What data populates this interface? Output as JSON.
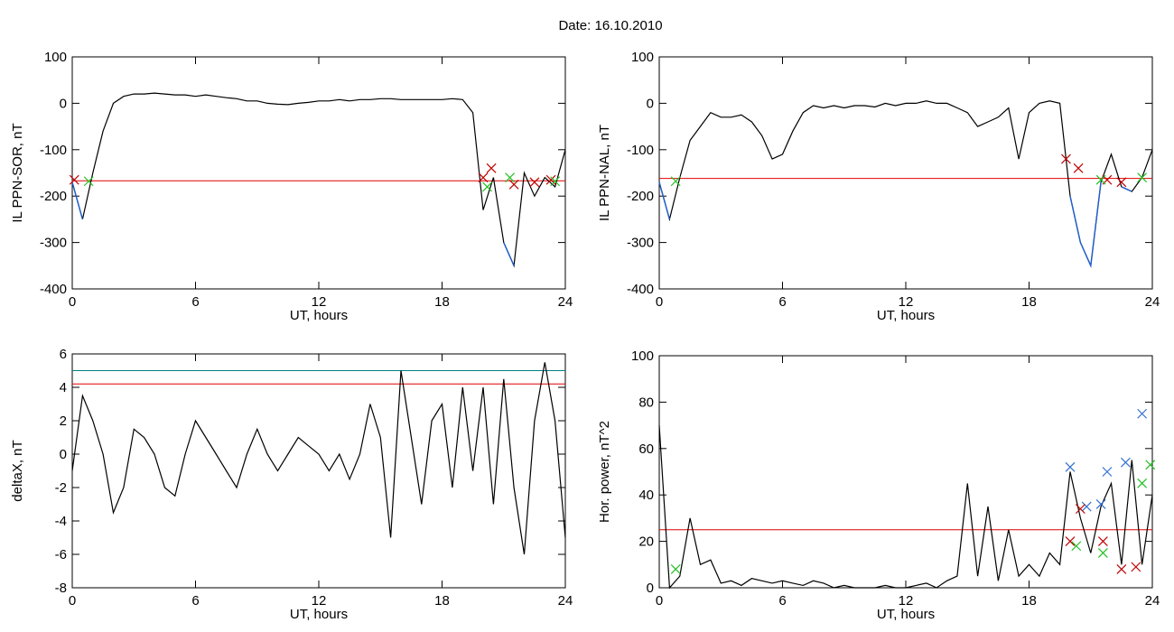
{
  "title": "Date:  16.10.2010",
  "chart_data": [
    {
      "type": "line",
      "ylabel": "IL PPN-SOR, nT",
      "xlabel": "UT, hours",
      "xlim": [
        0,
        24
      ],
      "xticks": [
        0,
        6,
        12,
        18,
        24
      ],
      "ylim": [
        -400,
        100
      ],
      "yticks": [
        -400,
        -300,
        -200,
        -100,
        0,
        100
      ],
      "x": [
        0,
        0.5,
        1,
        1.5,
        2,
        2.5,
        3,
        3.5,
        4,
        4.5,
        5,
        5.5,
        6,
        6.5,
        7,
        7.5,
        8,
        8.5,
        9,
        9.5,
        10,
        10.5,
        11,
        11.5,
        12,
        12.5,
        13,
        13.5,
        14,
        14.5,
        15,
        15.5,
        16,
        16.5,
        17,
        17.5,
        18,
        18.5,
        19,
        19.5,
        20,
        20.5,
        21,
        21.5,
        22,
        22.5,
        23,
        23.5,
        24
      ],
      "series": [
        {
          "color": "#000000",
          "values": [
            -170,
            -250,
            -150,
            -60,
            0,
            15,
            20,
            20,
            22,
            20,
            18,
            18,
            15,
            18,
            15,
            12,
            10,
            5,
            5,
            0,
            -2,
            -3,
            0,
            2,
            5,
            5,
            8,
            5,
            8,
            8,
            10,
            10,
            8,
            8,
            8,
            8,
            8,
            10,
            8,
            -20,
            -230,
            -160,
            -300,
            -350,
            -150,
            -200,
            -160,
            -180,
            -100
          ]
        }
      ],
      "below_color": "#1f5fd0",
      "hlines": [
        {
          "value": -167,
          "color": "#e00000"
        }
      ],
      "markers": [
        {
          "color": "#c00000",
          "x": [
            0.1,
            20,
            20.4,
            21.5,
            22.5,
            23.3
          ],
          "values": [
            -165,
            -160,
            -140,
            -175,
            -170,
            -165
          ]
        },
        {
          "color": "#20c020",
          "x": [
            0.8,
            20.2,
            21.3,
            23.5
          ],
          "values": [
            -168,
            -180,
            -160,
            -168
          ]
        }
      ]
    },
    {
      "type": "line",
      "ylabel": "IL PPN-NAL, nT",
      "xlabel": "UT, hours",
      "xlim": [
        0,
        24
      ],
      "xticks": [
        0,
        6,
        12,
        18,
        24
      ],
      "ylim": [
        -400,
        100
      ],
      "yticks": [
        -400,
        -300,
        -200,
        -100,
        0,
        100
      ],
      "x": [
        0,
        0.5,
        1,
        1.5,
        2,
        2.5,
        3,
        3.5,
        4,
        4.5,
        5,
        5.5,
        6,
        6.5,
        7,
        7.5,
        8,
        8.5,
        9,
        9.5,
        10,
        10.5,
        11,
        11.5,
        12,
        12.5,
        13,
        13.5,
        14,
        14.5,
        15,
        15.5,
        16,
        16.5,
        17,
        17.5,
        18,
        18.5,
        19,
        19.5,
        20,
        20.5,
        21,
        21.5,
        22,
        22.5,
        23,
        23.5,
        24
      ],
      "series": [
        {
          "color": "#000000",
          "values": [
            -170,
            -250,
            -160,
            -80,
            -50,
            -20,
            -30,
            -30,
            -25,
            -40,
            -70,
            -120,
            -110,
            -60,
            -20,
            -5,
            -10,
            -5,
            -10,
            -5,
            -5,
            -8,
            0,
            -5,
            0,
            0,
            5,
            0,
            0,
            -10,
            -20,
            -50,
            -40,
            -30,
            -10,
            -120,
            -20,
            0,
            5,
            0,
            -200,
            -300,
            -350,
            -170,
            -110,
            -180,
            -190,
            -160,
            -100
          ]
        }
      ],
      "below_color": "#1f5fd0",
      "hlines": [
        {
          "value": -162,
          "color": "#e00000"
        }
      ],
      "markers": [
        {
          "color": "#c00000",
          "x": [
            19.8,
            20.4,
            21.8,
            22.5
          ],
          "values": [
            -120,
            -140,
            -165,
            -170
          ]
        },
        {
          "color": "#20c020",
          "x": [
            0.8,
            21.5,
            23.5
          ],
          "values": [
            -168,
            -165,
            -160
          ]
        }
      ]
    },
    {
      "type": "line",
      "ylabel": "deltaX, nT",
      "xlabel": "UT, hours",
      "xlim": [
        0,
        24
      ],
      "xticks": [
        0,
        6,
        12,
        18,
        24
      ],
      "ylim": [
        -8,
        6
      ],
      "yticks": [
        -8,
        -6,
        -4,
        -2,
        0,
        2,
        4,
        6
      ],
      "x": [
        0,
        0.5,
        1,
        1.5,
        2,
        2.5,
        3,
        3.5,
        4,
        4.5,
        5,
        5.5,
        6,
        6.5,
        7,
        7.5,
        8,
        8.5,
        9,
        9.5,
        10,
        10.5,
        11,
        11.5,
        12,
        12.5,
        13,
        13.5,
        14,
        14.5,
        15,
        15.5,
        16,
        16.5,
        17,
        17.5,
        18,
        18.5,
        19,
        19.5,
        20,
        20.5,
        21,
        21.5,
        22,
        22.5,
        23,
        23.5,
        24
      ],
      "series": [
        {
          "color": "#000000",
          "values": [
            -1,
            3.5,
            2,
            0,
            -3.5,
            -2,
            1.5,
            1,
            0,
            -2,
            -2.5,
            0,
            2,
            1,
            0,
            -1,
            -2,
            0,
            1.5,
            0,
            -1,
            0,
            1,
            0.5,
            0,
            -1,
            0,
            -1.5,
            0,
            3,
            1,
            -5,
            5,
            1,
            -3,
            2,
            3,
            -2,
            4,
            -1,
            4,
            -3,
            4.5,
            -2,
            -6,
            2,
            5.5,
            2,
            -5
          ]
        }
      ],
      "hlines": [
        {
          "value": 5.0,
          "color": "#008080"
        },
        {
          "value": 4.2,
          "color": "#e00000"
        }
      ],
      "markers": []
    },
    {
      "type": "line",
      "ylabel": "Hor. power, nT^2",
      "xlabel": "UT, hours",
      "xlim": [
        0,
        24
      ],
      "xticks": [
        0,
        6,
        12,
        18,
        24
      ],
      "ylim": [
        0,
        100
      ],
      "yticks": [
        0,
        20,
        40,
        60,
        80,
        100
      ],
      "x": [
        0,
        0.5,
        1,
        1.5,
        2,
        2.5,
        3,
        3.5,
        4,
        4.5,
        5,
        5.5,
        6,
        6.5,
        7,
        7.5,
        8,
        8.5,
        9,
        9.5,
        10,
        10.5,
        11,
        11.5,
        12,
        12.5,
        13,
        13.5,
        14,
        14.5,
        15,
        15.5,
        16,
        16.5,
        17,
        17.5,
        18,
        18.5,
        19,
        19.5,
        20,
        20.5,
        21,
        21.5,
        22,
        22.5,
        23,
        23.5,
        24
      ],
      "series": [
        {
          "color": "#000000",
          "values": [
            70,
            0,
            5,
            30,
            10,
            12,
            2,
            3,
            1,
            4,
            3,
            2,
            3,
            2,
            1,
            3,
            2,
            0,
            1,
            0,
            0,
            0,
            1,
            0,
            0,
            1,
            2,
            0,
            3,
            5,
            45,
            5,
            35,
            3,
            25,
            5,
            10,
            5,
            15,
            10,
            50,
            30,
            15,
            35,
            45,
            10,
            55,
            10,
            40
          ]
        }
      ],
      "hlines": [
        {
          "value": 25,
          "color": "#e00000"
        }
      ],
      "markers": [
        {
          "color": "#3070d0",
          "x": [
            20,
            20.8,
            21.5,
            21.8,
            22.7,
            23.5
          ],
          "values": [
            52,
            35,
            36,
            50,
            54,
            75
          ]
        },
        {
          "color": "#c00000",
          "x": [
            20,
            20.5,
            21.6,
            22.5,
            23.2
          ],
          "values": [
            20,
            34,
            20,
            8,
            9
          ]
        },
        {
          "color": "#20c020",
          "x": [
            0.8,
            20.3,
            21.6,
            23.5,
            23.9
          ],
          "values": [
            8,
            18,
            15,
            45,
            53
          ]
        }
      ]
    }
  ]
}
